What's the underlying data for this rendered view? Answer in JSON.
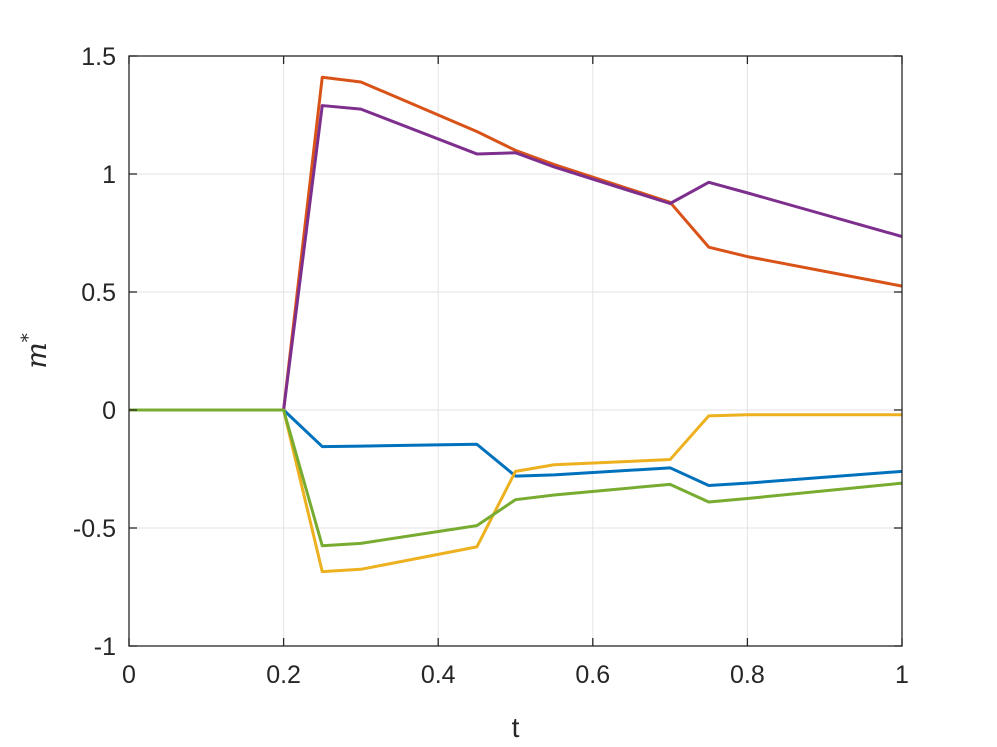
{
  "chart_data": {
    "type": "line",
    "xlabel": "t",
    "ylabel": "m",
    "ylabel_superscript": "*",
    "xlim": [
      0,
      1
    ],
    "ylim": [
      -1,
      1.5
    ],
    "xticks": [
      0,
      0.2,
      0.4,
      0.6,
      0.8,
      1
    ],
    "xtick_labels": [
      "0",
      "0.2",
      "0.4",
      "0.6",
      "0.8",
      "1"
    ],
    "yticks": [
      -1,
      -0.5,
      0,
      0.5,
      1,
      1.5
    ],
    "ytick_labels": [
      "-1",
      "-0.5",
      "0",
      "0.5",
      "1",
      "1.5"
    ],
    "grid": true,
    "series": [
      {
        "color": "#0072BD",
        "x": [
          0,
          0.2,
          0.25,
          0.3,
          0.45,
          0.5,
          0.55,
          0.7,
          0.75,
          0.8,
          1
        ],
        "y": [
          0,
          0,
          -0.155,
          -0.153,
          -0.145,
          -0.28,
          -0.275,
          -0.245,
          -0.32,
          -0.31,
          -0.26
        ]
      },
      {
        "color": "#D95319",
        "x": [
          0,
          0.2,
          0.25,
          0.3,
          0.45,
          0.5,
          0.55,
          0.7,
          0.75,
          0.8,
          1
        ],
        "y": [
          0,
          0,
          1.41,
          1.39,
          1.18,
          1.1,
          1.04,
          0.88,
          0.69,
          0.65,
          0.525
        ]
      },
      {
        "color": "#EDB120",
        "x": [
          0,
          0.2,
          0.25,
          0.3,
          0.45,
          0.5,
          0.55,
          0.7,
          0.75,
          0.8,
          1
        ],
        "y": [
          0,
          0,
          -0.685,
          -0.675,
          -0.58,
          -0.26,
          -0.232,
          -0.21,
          -0.025,
          -0.02,
          -0.02
        ]
      },
      {
        "color": "#7E2F8E",
        "x": [
          0,
          0.2,
          0.25,
          0.3,
          0.45,
          0.5,
          0.55,
          0.7,
          0.75,
          0.8,
          1
        ],
        "y": [
          0,
          0,
          1.29,
          1.275,
          1.085,
          1.09,
          1.03,
          0.875,
          0.965,
          0.92,
          0.735
        ]
      },
      {
        "color": "#77AC30",
        "x": [
          0,
          0.2,
          0.25,
          0.3,
          0.45,
          0.5,
          0.55,
          0.7,
          0.75,
          0.8,
          1
        ],
        "y": [
          0,
          0,
          -0.575,
          -0.565,
          -0.49,
          -0.38,
          -0.36,
          -0.315,
          -0.39,
          -0.375,
          -0.31
        ]
      }
    ]
  }
}
